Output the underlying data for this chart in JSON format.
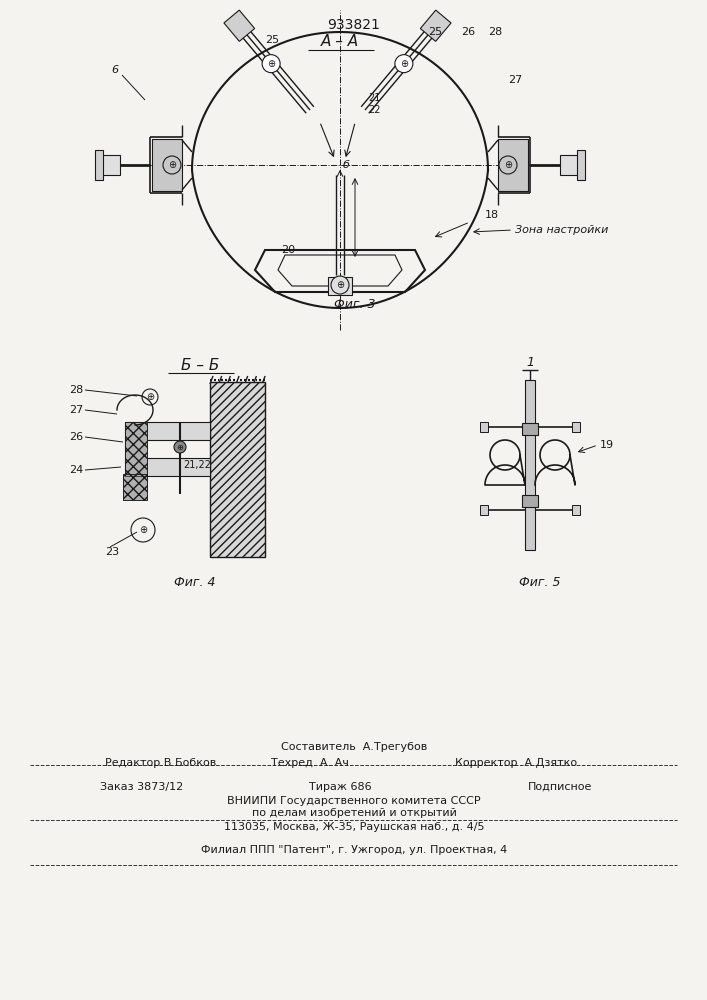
{
  "patent_number": "933821",
  "background_color": "#f5f3ef",
  "line_color": "#1a1a1a",
  "fig3_title": "А – А",
  "fig3_caption": "Фиг. 3",
  "fig4_title": "Б – Б",
  "fig4_caption": "Фиг. 4",
  "fig5_caption": "Фиг. 5",
  "footer_line1": "Составитель  А.Трегубов",
  "footer_line2_left": "Редактор В.Бобков",
  "footer_line2_mid": "Техред  А. Ач",
  "footer_line2_right": "Корректор  А.Дзятко",
  "footer_line3_a": "Заказ 3873/12",
  "footer_line3_b": "Тираж 686",
  "footer_line3_c": "Подписное",
  "footer_line4": "ВНИИПИ Государственного комитета СССР",
  "footer_line5": "по делам изобретений и открытий",
  "footer_line6": "113035, Москва, Ж-35, Раушская наб., д. 4/5",
  "footer_line7": "Филиал ППП \"Патент\", г. Ужгород, ул. Проектная, 4"
}
